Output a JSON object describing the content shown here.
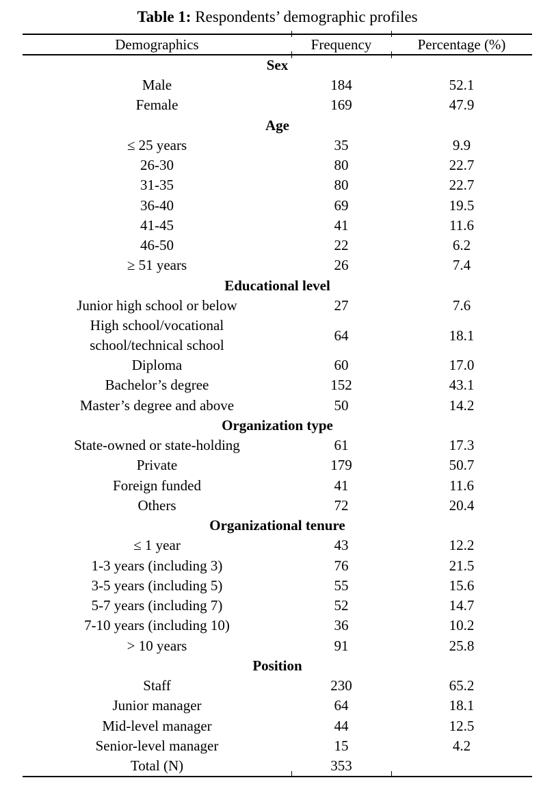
{
  "colors": {
    "text": "#000000",
    "background": "#ffffff",
    "rule": "#000000"
  },
  "caption": {
    "label": "Table 1:",
    "text": " Respondents’ demographic profiles"
  },
  "columns": [
    "Demographics",
    "Frequency",
    "Percentage (%)"
  ],
  "sections": [
    {
      "header": "Sex",
      "rows": [
        [
          "Male",
          "184",
          "52.1"
        ],
        [
          "Female",
          "169",
          "47.9"
        ]
      ]
    },
    {
      "header": "Age",
      "rows": [
        [
          "≤ 25 years",
          "35",
          "9.9"
        ],
        [
          "26-30",
          "80",
          "22.7"
        ],
        [
          "31-35",
          "80",
          "22.7"
        ],
        [
          "36-40",
          "69",
          "19.5"
        ],
        [
          "41-45",
          "41",
          "11.6"
        ],
        [
          "46-50",
          "22",
          "6.2"
        ],
        [
          "≥ 51 years",
          "26",
          "7.4"
        ]
      ]
    },
    {
      "header": "Educational level",
      "rows": [
        [
          "Junior high school or below",
          "27",
          "7.6"
        ],
        [
          "High school/vocational\nschool/technical school",
          "64",
          "18.1"
        ],
        [
          "Diploma",
          "60",
          "17.0"
        ],
        [
          "Bachelor’s degree",
          "152",
          "43.1"
        ],
        [
          "Master’s degree and above",
          "50",
          "14.2"
        ]
      ]
    },
    {
      "header": "Organization type",
      "rows": [
        [
          "State-owned or state-holding",
          "61",
          "17.3"
        ],
        [
          "Private",
          "179",
          "50.7"
        ],
        [
          "Foreign funded",
          "41",
          "11.6"
        ],
        [
          "Others",
          "72",
          "20.4"
        ]
      ]
    },
    {
      "header": "Organizational tenure",
      "rows": [
        [
          "≤ 1 year",
          "43",
          "12.2"
        ],
        [
          "1-3 years (including 3)",
          "76",
          "21.5"
        ],
        [
          "3-5 years (including 5)",
          "55",
          "15.6"
        ],
        [
          "5-7 years (including 7)",
          "52",
          "14.7"
        ],
        [
          "7-10 years (including 10)",
          "36",
          "10.2"
        ],
        [
          "> 10 years",
          "91",
          "25.8"
        ]
      ]
    },
    {
      "header": "Position",
      "rows": [
        [
          "Staff",
          "230",
          "65.2"
        ],
        [
          "Junior manager",
          "64",
          "18.1"
        ],
        [
          "Mid-level manager",
          "44",
          "12.5"
        ],
        [
          "Senior-level manager",
          "15",
          "4.2"
        ]
      ]
    }
  ],
  "total": {
    "label": "Total (N)",
    "frequency": "353",
    "percentage": ""
  }
}
